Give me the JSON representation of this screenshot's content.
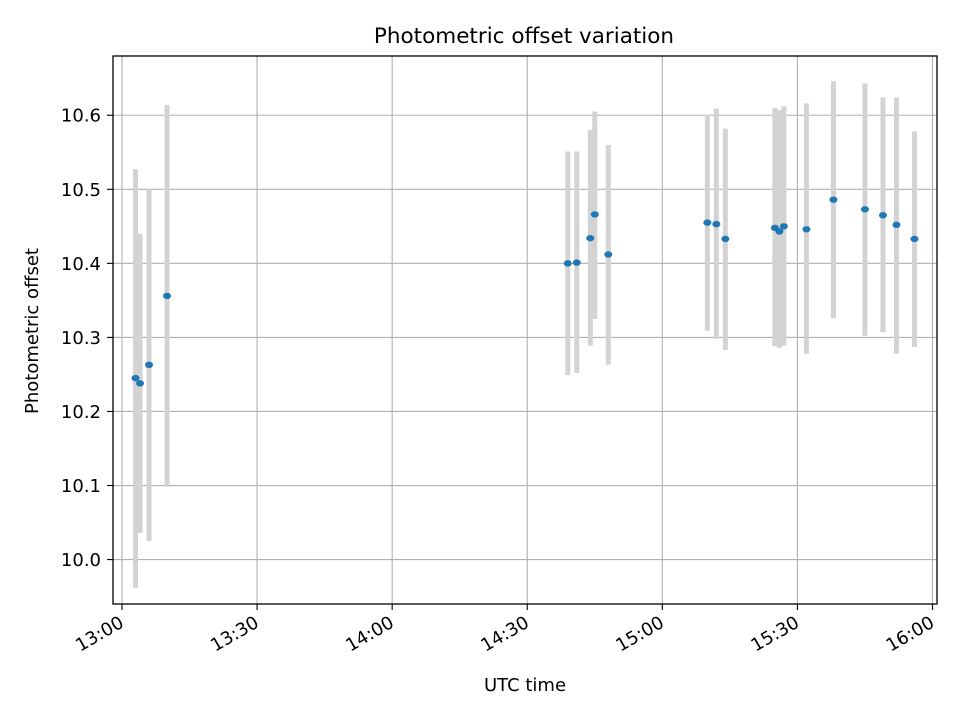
{
  "chart_data": {
    "type": "scatter",
    "title": "Photometric offset variation",
    "xlabel": "UTC time",
    "ylabel": "Photometric offset",
    "grid": true,
    "x_unit": "UTC time (HH:MM)",
    "xlim": [
      "12:58",
      "16:01"
    ],
    "ylim": [
      9.94,
      10.68
    ],
    "x_ticks": [
      "13:00",
      "13:30",
      "14:00",
      "14:30",
      "15:00",
      "15:30",
      "16:00"
    ],
    "y_ticks": [
      10.0,
      10.1,
      10.2,
      10.3,
      10.4,
      10.5,
      10.6
    ],
    "colors": {
      "points": "#1f77b4",
      "error_bars": "#d3d3d3",
      "grid": "#b0b0b0"
    },
    "points": [
      {
        "x": "13:03",
        "y": 10.245,
        "err_low": 9.962,
        "err_high": 10.527
      },
      {
        "x": "13:04",
        "y": 10.238,
        "err_low": 10.036,
        "err_high": 10.44
      },
      {
        "x": "13:06",
        "y": 10.263,
        "err_low": 10.025,
        "err_high": 10.5
      },
      {
        "x": "13:10",
        "y": 10.356,
        "err_low": 10.098,
        "err_high": 10.614
      },
      {
        "x": "14:39",
        "y": 10.4,
        "err_low": 10.249,
        "err_high": 10.551
      },
      {
        "x": "14:41",
        "y": 10.401,
        "err_low": 10.252,
        "err_high": 10.551
      },
      {
        "x": "14:44",
        "y": 10.434,
        "err_low": 10.289,
        "err_high": 10.58
      },
      {
        "x": "14:45",
        "y": 10.466,
        "err_low": 10.325,
        "err_high": 10.605
      },
      {
        "x": "14:48",
        "y": 10.412,
        "err_low": 10.263,
        "err_high": 10.56
      },
      {
        "x": "15:10",
        "y": 10.455,
        "err_low": 10.309,
        "err_high": 10.601
      },
      {
        "x": "15:12",
        "y": 10.453,
        "err_low": 10.298,
        "err_high": 10.609
      },
      {
        "x": "15:14",
        "y": 10.433,
        "err_low": 10.283,
        "err_high": 10.582
      },
      {
        "x": "15:25",
        "y": 10.448,
        "err_low": 10.288,
        "err_high": 10.61
      },
      {
        "x": "15:26",
        "y": 10.443,
        "err_low": 10.286,
        "err_high": 10.607
      },
      {
        "x": "15:27",
        "y": 10.45,
        "err_low": 10.289,
        "err_high": 10.612
      },
      {
        "x": "15:32",
        "y": 10.446,
        "err_low": 10.278,
        "err_high": 10.616
      },
      {
        "x": "15:38",
        "y": 10.486,
        "err_low": 10.326,
        "err_high": 10.646
      },
      {
        "x": "15:45",
        "y": 10.473,
        "err_low": 10.302,
        "err_high": 10.643
      },
      {
        "x": "15:49",
        "y": 10.465,
        "err_low": 10.307,
        "err_high": 10.624
      },
      {
        "x": "15:52",
        "y": 10.452,
        "err_low": 10.278,
        "err_high": 10.624
      },
      {
        "x": "15:56",
        "y": 10.433,
        "err_low": 10.287,
        "err_high": 10.578
      }
    ]
  }
}
